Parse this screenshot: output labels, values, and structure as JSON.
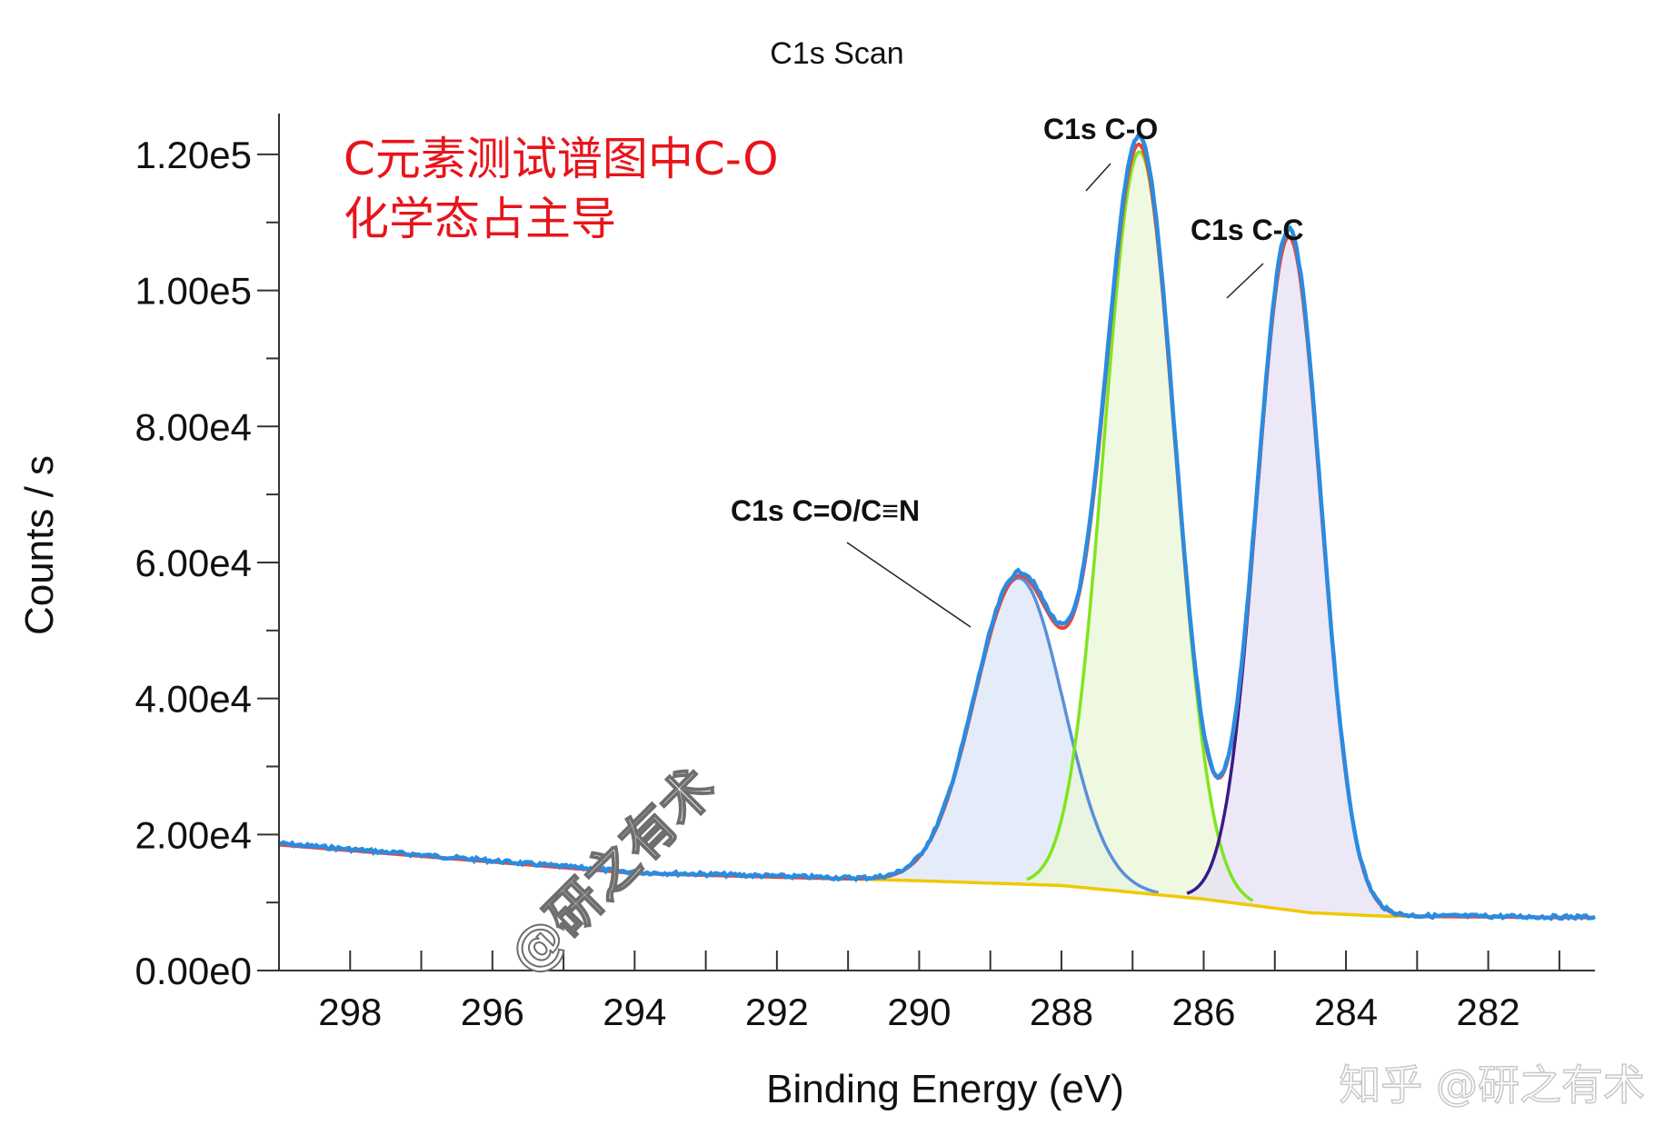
{
  "chart_data": {
    "type": "line",
    "title": "C1s Scan",
    "xlabel": "Binding Energy (eV)",
    "ylabel": "Counts / s",
    "xlim": [
      299,
      280.5
    ],
    "ylim": [
      0,
      126000
    ],
    "x_reversed": true,
    "xticks": [
      298,
      296,
      294,
      292,
      290,
      288,
      286,
      284,
      282
    ],
    "yticks": [
      0,
      20000,
      40000,
      60000,
      80000,
      100000,
      120000
    ],
    "ytick_labels": [
      "0.00e0",
      "2.00e4",
      "4.00e4",
      "6.00e4",
      "8.00e4",
      "1.00e5",
      "1.20e5"
    ],
    "grid": false,
    "background": {
      "name": "background",
      "color": "#f0c800",
      "x": [
        299,
        294,
        290,
        288,
        286,
        284.5,
        283.5,
        282,
        281
      ],
      "y": [
        18500,
        14300,
        13200,
        12500,
        10500,
        8500,
        8000,
        7900,
        7800
      ]
    },
    "peaks": [
      {
        "label": "C1s C=O/C≡N",
        "center": 288.6,
        "height": 45000,
        "sigma": 0.62,
        "line_color": "#5b8fd9",
        "fill": "#dce6f7"
      },
      {
        "label": "C1s C-O",
        "center": 286.9,
        "height": 109000,
        "sigma": 0.5,
        "line_color": "#7fe51e",
        "fill": "#e9f7d8"
      },
      {
        "label": "C1s C-C",
        "center": 284.8,
        "height": 99000,
        "sigma": 0.45,
        "line_color": "#3a1a88",
        "fill": "#e6e0f4"
      }
    ],
    "series": [
      {
        "name": "envelope",
        "color": "#e8463a"
      },
      {
        "name": "data",
        "color": "#2a8ce0"
      }
    ],
    "annotations": [
      {
        "text": "C1s C-O",
        "x": 286.9,
        "y": 113000
      },
      {
        "text": "C1s C-C",
        "x": 284.8,
        "y": 100000
      },
      {
        "text": "C1s C=O/C≡N",
        "x": 288.5,
        "y": 50000
      }
    ]
  },
  "overlay": {
    "note_line1": "C元素测试谱图中C-O",
    "note_line2": "化学态占主导",
    "watermark": "@研之有术",
    "corner_watermark": "知乎 @研之有术"
  }
}
